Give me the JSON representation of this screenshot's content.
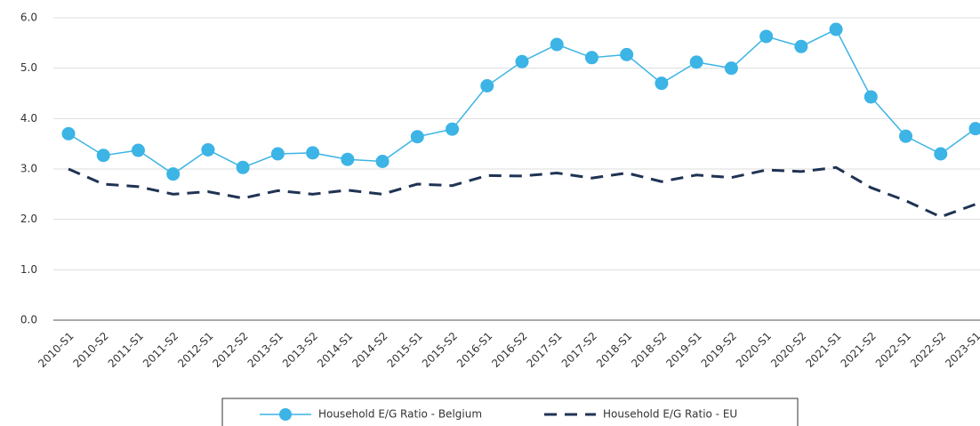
{
  "chart_data": {
    "type": "line",
    "categories": [
      "2010-S1",
      "2010-S2",
      "2011-S1",
      "2011-S2",
      "2012-S1",
      "2012-S2",
      "2013-S1",
      "2013-S2",
      "2014-S1",
      "2014-S2",
      "2015-S1",
      "2015-S2",
      "2016-S1",
      "2016-S2",
      "2017-S1",
      "2017-S2",
      "2018-S1",
      "2018-S2",
      "2019-S1",
      "2019-S2",
      "2020-S1",
      "2020-S2",
      "2021-S1",
      "2021-S2",
      "2022-S1",
      "2022-S2",
      "2023-S1"
    ],
    "series": [
      {
        "name": "Household E/G Ratio - Belgium",
        "color": "#3cb4e5",
        "dashed": false,
        "markers": true,
        "values": [
          3.7,
          3.27,
          3.37,
          2.9,
          3.38,
          3.03,
          3.3,
          3.32,
          3.19,
          3.15,
          3.64,
          3.79,
          4.65,
          5.13,
          5.47,
          5.21,
          5.27,
          4.7,
          5.12,
          5.0,
          5.63,
          5.43,
          5.77,
          4.43,
          3.65,
          3.3,
          3.8
        ]
      },
      {
        "name": "Household E/G Ratio - EU",
        "color": "#1f3354",
        "dashed": true,
        "markers": false,
        "values": [
          3.0,
          2.7,
          2.65,
          2.5,
          2.55,
          2.42,
          2.57,
          2.5,
          2.58,
          2.5,
          2.7,
          2.67,
          2.87,
          2.86,
          2.92,
          2.82,
          2.92,
          2.75,
          2.88,
          2.83,
          2.98,
          2.95,
          3.03,
          2.63,
          2.37,
          2.05,
          2.3
        ]
      }
    ],
    "ylim": [
      0,
      6
    ],
    "yticks": [
      {
        "value": 0,
        "label": "0.0"
      },
      {
        "value": 1,
        "label": "1.0"
      },
      {
        "value": 2,
        "label": "2.0"
      },
      {
        "value": 3,
        "label": "3.0"
      },
      {
        "value": 4,
        "label": "4.0"
      },
      {
        "value": 5,
        "label": "5.0"
      },
      {
        "value": 6,
        "label": "6.0"
      }
    ],
    "grid": true
  }
}
